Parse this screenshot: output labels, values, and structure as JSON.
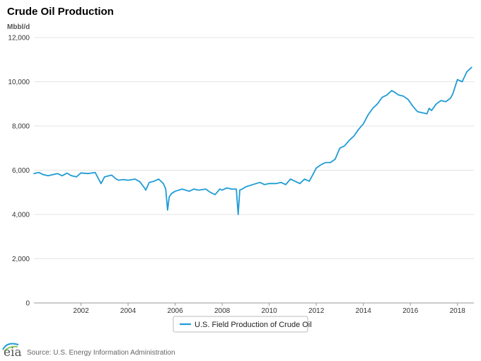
{
  "chart_data": {
    "type": "line",
    "title": "Crude Oil Production",
    "ylabel": "Mbbl/d",
    "xlabel": "",
    "ylim": [
      0,
      12000
    ],
    "xlim": [
      2000.0,
      2018.7
    ],
    "yticks": [
      0,
      2000,
      4000,
      6000,
      8000,
      10000,
      12000
    ],
    "ytick_labels": [
      "0",
      "2,000",
      "4,000",
      "6,000",
      "8,000",
      "10,000",
      "12,000"
    ],
    "xticks": [
      2002,
      2004,
      2006,
      2008,
      2010,
      2012,
      2014,
      2016,
      2018
    ],
    "xtick_labels": [
      "2002",
      "2004",
      "2006",
      "2008",
      "2010",
      "2012",
      "2014",
      "2016",
      "2018"
    ],
    "grid": "horizontal",
    "legend_position": "bottom",
    "color": "#1f9bd6",
    "series": [
      {
        "name": "U.S. Field Production of Crude Oil",
        "x": [
          2000.0,
          2000.2,
          2000.4,
          2000.6,
          2000.8,
          2001.0,
          2001.2,
          2001.4,
          2001.6,
          2001.8,
          2002.0,
          2002.3,
          2002.6,
          2002.75,
          2002.85,
          2003.0,
          2003.3,
          2003.5,
          2003.6,
          2003.8,
          2004.0,
          2004.3,
          2004.5,
          2004.7,
          2004.75,
          2004.9,
          2005.1,
          2005.3,
          2005.5,
          2005.6,
          2005.68,
          2005.75,
          2005.85,
          2006.0,
          2006.3,
          2006.6,
          2006.8,
          2007.0,
          2007.3,
          2007.5,
          2007.7,
          2007.9,
          2008.0,
          2008.2,
          2008.4,
          2008.6,
          2008.68,
          2008.75,
          2008.85,
          2009.0,
          2009.3,
          2009.6,
          2009.8,
          2010.0,
          2010.3,
          2010.5,
          2010.7,
          2010.9,
          2011.1,
          2011.3,
          2011.5,
          2011.7,
          2011.85,
          2012.0,
          2012.2,
          2012.4,
          2012.6,
          2012.8,
          2013.0,
          2013.2,
          2013.4,
          2013.6,
          2013.8,
          2014.0,
          2014.2,
          2014.4,
          2014.6,
          2014.8,
          2015.0,
          2015.2,
          2015.3,
          2015.5,
          2015.7,
          2015.9,
          2016.1,
          2016.3,
          2016.5,
          2016.7,
          2016.8,
          2016.9,
          2017.1,
          2017.3,
          2017.5,
          2017.7,
          2017.8,
          2018.0,
          2018.2,
          2018.4,
          2018.6
        ],
        "values": [
          5850,
          5900,
          5800,
          5750,
          5800,
          5850,
          5750,
          5870,
          5750,
          5700,
          5880,
          5850,
          5900,
          5600,
          5400,
          5700,
          5780,
          5600,
          5550,
          5580,
          5550,
          5600,
          5480,
          5200,
          5100,
          5450,
          5500,
          5600,
          5400,
          5150,
          4200,
          4800,
          4950,
          5050,
          5150,
          5050,
          5150,
          5100,
          5150,
          5000,
          4900,
          5150,
          5100,
          5200,
          5150,
          5150,
          4000,
          5100,
          5150,
          5250,
          5350,
          5450,
          5350,
          5400,
          5400,
          5450,
          5350,
          5600,
          5500,
          5400,
          5600,
          5500,
          5800,
          6100,
          6250,
          6350,
          6350,
          6500,
          7000,
          7100,
          7350,
          7550,
          7850,
          8100,
          8500,
          8800,
          9000,
          9300,
          9400,
          9600,
          9550,
          9400,
          9350,
          9200,
          8900,
          8650,
          8600,
          8550,
          8800,
          8700,
          9000,
          9150,
          9100,
          9250,
          9450,
          10100,
          10000,
          10450,
          10650
        ]
      }
    ],
    "source": "Source: U.S. Energy Information Administration",
    "logo": "eia"
  }
}
